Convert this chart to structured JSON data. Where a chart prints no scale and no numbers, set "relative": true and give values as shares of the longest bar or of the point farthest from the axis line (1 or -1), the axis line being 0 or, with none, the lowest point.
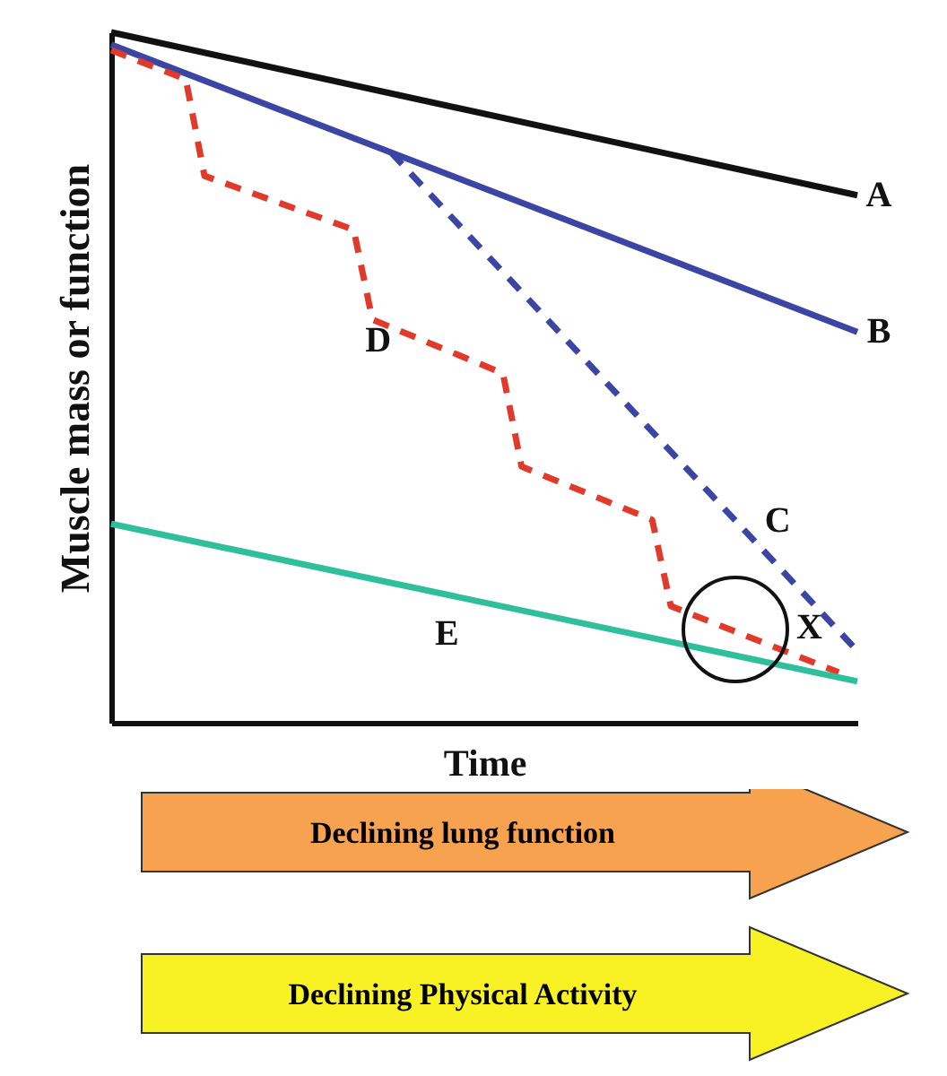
{
  "chart_data": {
    "type": "line",
    "relative": true,
    "xlabel": "Time",
    "ylabel": "Muscle mass or function",
    "grid": false,
    "categories": [
      null,
      null,
      null,
      null,
      null,
      null,
      null,
      null,
      null,
      null,
      null,
      null,
      null,
      null,
      null,
      null,
      null,
      null,
      null,
      null,
      null,
      null,
      null,
      null,
      null,
      null,
      null,
      null,
      null,
      null,
      null,
      null,
      null,
      null,
      null,
      null,
      null,
      null,
      null,
      null,
      null
    ],
    "series": [
      {
        "name": "A",
        "color": "#111111",
        "line_style": "solid",
        "values": [
          1,
          null,
          null,
          null,
          null,
          null,
          null,
          null,
          null,
          null,
          null,
          null,
          null,
          null,
          null,
          null,
          null,
          null,
          null,
          null,
          null,
          null,
          null,
          null,
          null,
          null,
          null,
          null,
          null,
          null,
          null,
          null,
          null,
          null,
          null,
          null,
          null,
          null,
          null,
          null,
          0.764
        ]
      },
      {
        "name": "B",
        "color": "#3b45a3",
        "line_style": "solid",
        "values": [
          0.982,
          null,
          null,
          null,
          null,
          null,
          null,
          null,
          null,
          null,
          null,
          null,
          null,
          null,
          null,
          null,
          null,
          null,
          null,
          null,
          null,
          null,
          null,
          null,
          null,
          null,
          null,
          null,
          null,
          null,
          null,
          null,
          null,
          null,
          null,
          null,
          null,
          null,
          null,
          null,
          0.566
        ]
      },
      {
        "name": "C",
        "color": "#3b45a3",
        "line_style": "dashed",
        "values": [
          null,
          null,
          null,
          null,
          null,
          null,
          null,
          null,
          null,
          null,
          null,
          null,
          null,
          null,
          null,
          0.826,
          null,
          null,
          null,
          null,
          null,
          null,
          null,
          null,
          null,
          null,
          null,
          null,
          null,
          null,
          null,
          null,
          null,
          null,
          null,
          null,
          null,
          null,
          null,
          null,
          0.104
        ]
      },
      {
        "name": "D",
        "color": "#e23a2a",
        "line_style": "dashed",
        "values": [
          0.974,
          null,
          null,
          null,
          0.932,
          0.792,
          null,
          null,
          null,
          null,
          null,
          null,
          null,
          0.714,
          0.584,
          null,
          null,
          null,
          null,
          null,
          null,
          0.506,
          0.371,
          null,
          null,
          null,
          null,
          null,
          null,
          0.294,
          0.169,
          null,
          null,
          null,
          null,
          null,
          null,
          null,
          null,
          0.073,
          null
        ]
      },
      {
        "name": "E",
        "color": "#2fbf9c",
        "line_style": "solid",
        "values": [
          0.288,
          null,
          null,
          null,
          null,
          null,
          null,
          null,
          null,
          null,
          null,
          null,
          null,
          null,
          null,
          null,
          null,
          null,
          null,
          null,
          null,
          null,
          null,
          null,
          null,
          null,
          null,
          null,
          null,
          null,
          null,
          null,
          null,
          null,
          null,
          null,
          null,
          null,
          null,
          null,
          0.06
        ]
      }
    ],
    "annotations": [
      "X",
      "Declining lung function",
      "Declining Physical Activity"
    ]
  }
}
